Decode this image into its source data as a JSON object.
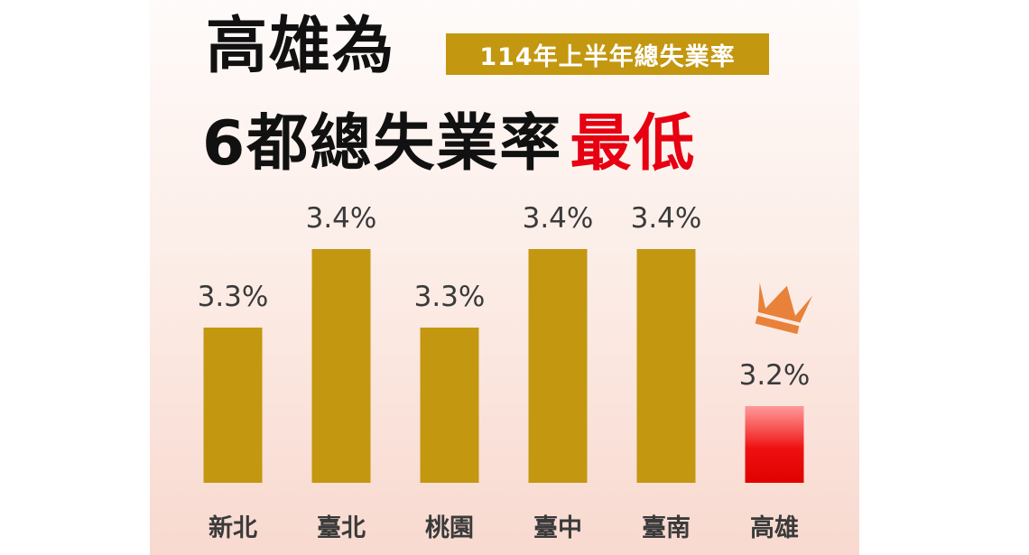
{
  "title": {
    "line1": "高雄為",
    "badge": "114年上半年總失業率",
    "line2_main": "6都總失業率",
    "line2_highlight": "最低"
  },
  "colors": {
    "bar": "#c39710",
    "highlight_bar": "#ee1111",
    "highlight_text": "#e60012",
    "crown": "#e8813a"
  },
  "chart_data": {
    "type": "bar",
    "categories": [
      "新北",
      "臺北",
      "桃園",
      "臺中",
      "臺南",
      "高雄"
    ],
    "values": [
      3.3,
      3.4,
      3.3,
      3.4,
      3.4,
      3.2
    ],
    "value_labels": [
      "3.3%",
      "3.4%",
      "3.3%",
      "3.4%",
      "3.4%",
      "3.2%"
    ],
    "highlight_index": 5,
    "highlight_icon": "crown-icon",
    "title": "",
    "xlabel": "",
    "ylabel": "",
    "grid": false
  }
}
